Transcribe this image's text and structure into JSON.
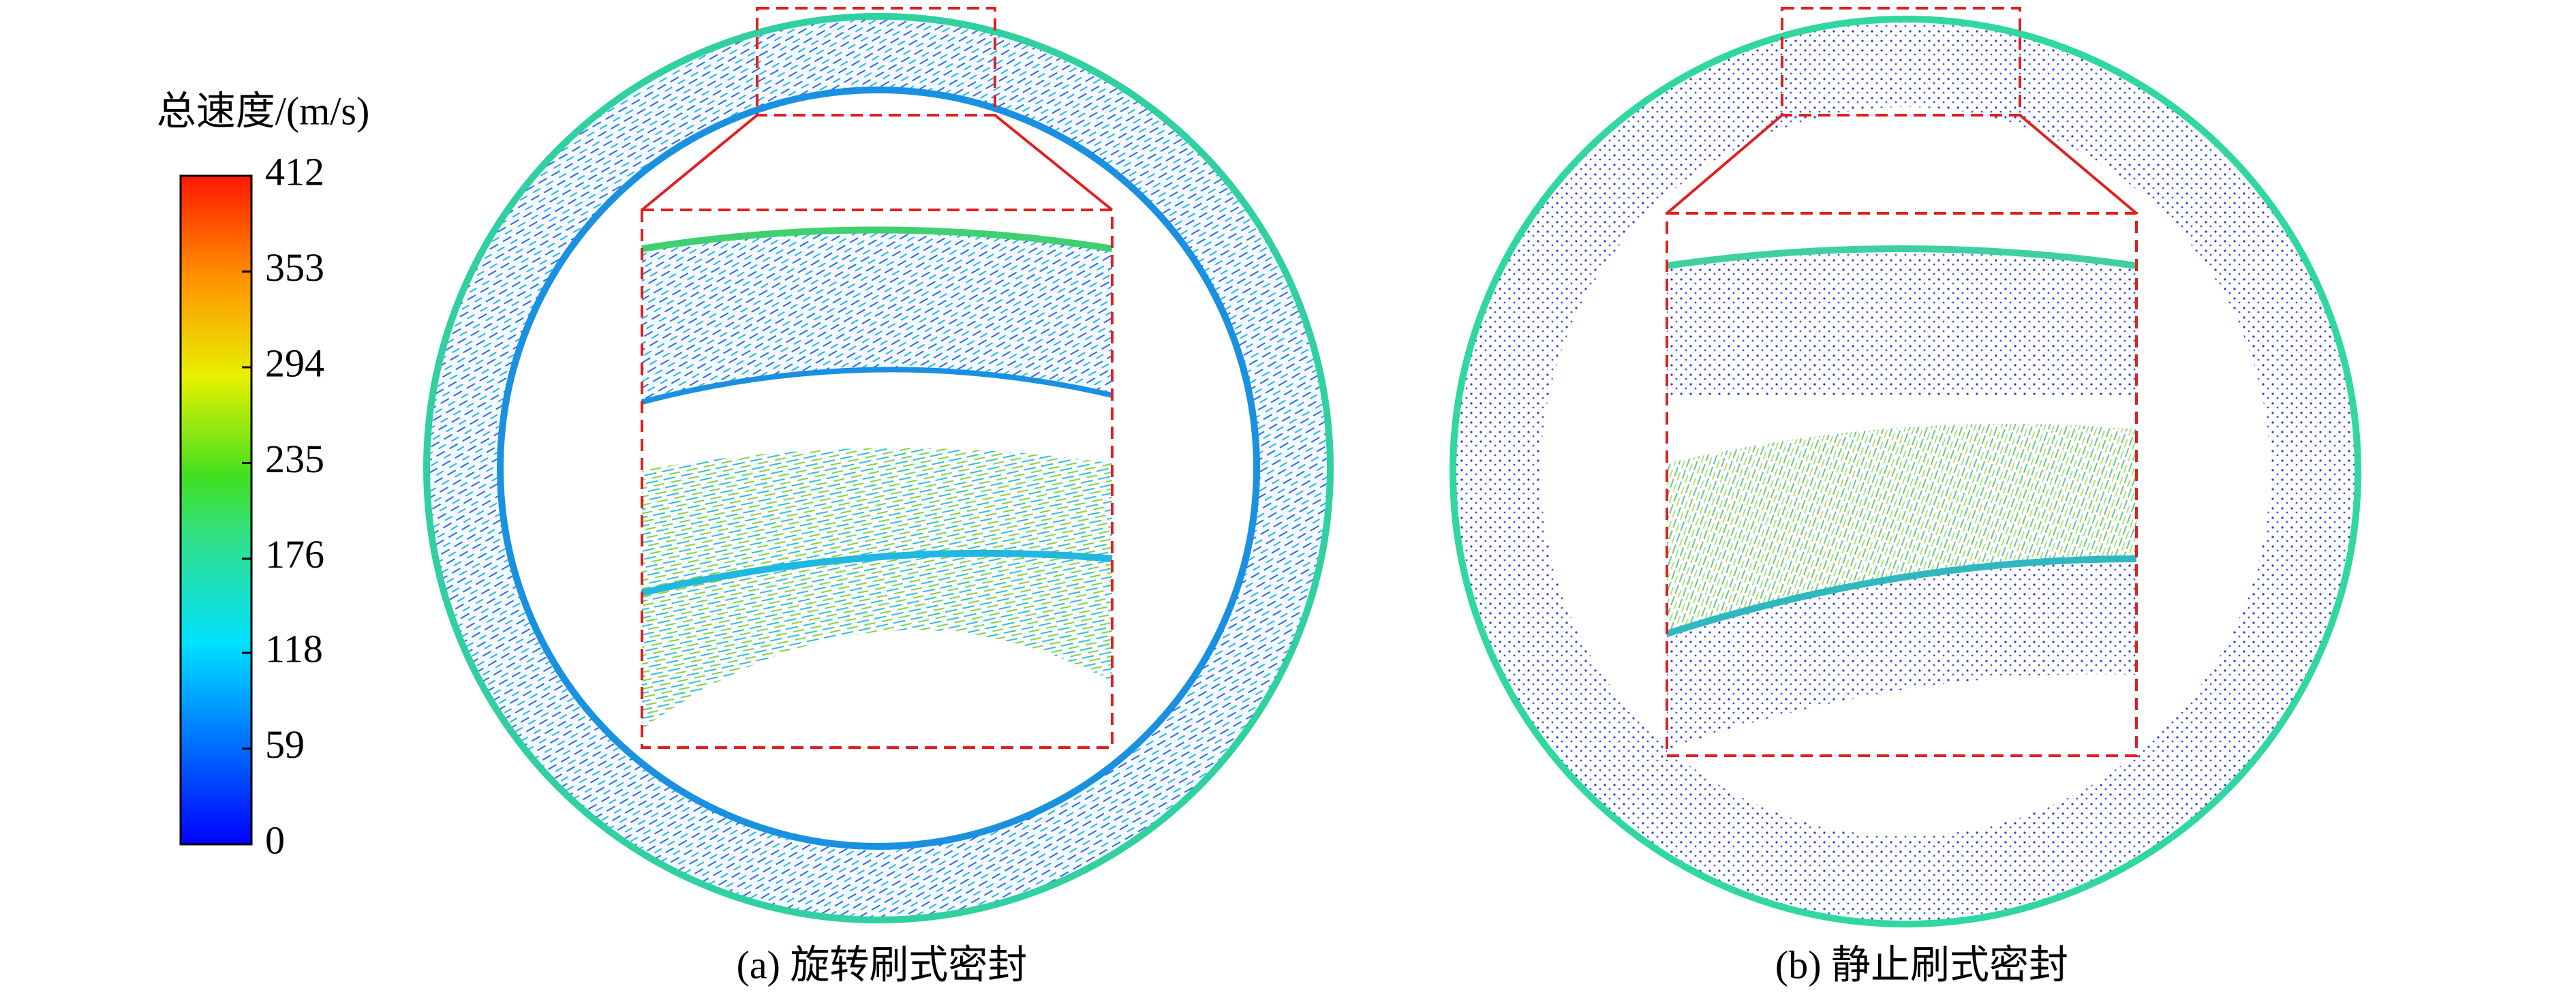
{
  "colorbar": {
    "title": "总速度/(m/s)",
    "lim": [
      0,
      412
    ],
    "ticks": [
      0,
      59,
      118,
      176,
      235,
      294,
      353,
      412
    ]
  },
  "panels": [
    {
      "caption": "(a) 旋转刷式密封"
    },
    {
      "caption": "(b) 静止刷式密封"
    }
  ]
}
